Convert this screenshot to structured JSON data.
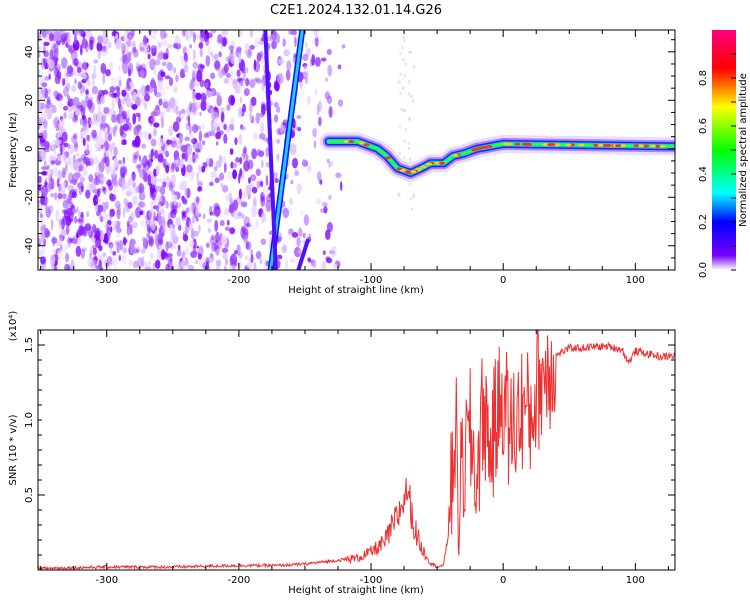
{
  "title": "C2E1.2024.132.01.14.G26",
  "chart_data": [
    {
      "type": "heatmap",
      "xlabel": "Height of straight line (km)",
      "ylabel": "Frequency (Hz)",
      "xlim": [
        -352,
        130
      ],
      "ylim": [
        -50,
        49
      ],
      "x_ticks": [
        -300,
        -200,
        -100,
        0,
        100
      ],
      "y_ticks": [
        -40,
        -20,
        0,
        20,
        40
      ],
      "colorbar": {
        "label": "Normalized spectral amplitude",
        "range": [
          0,
          1
        ],
        "ticks": [
          "0.0",
          "0.2",
          "0.4",
          "0.6",
          "0.8"
        ],
        "colormap": [
          "#ffffff",
          "#7a00ff",
          "#0000ff",
          "#00ffff",
          "#00ff00",
          "#ffff00",
          "#ff0000",
          "#ff00aa"
        ]
      },
      "features": [
        {
          "name": "noise",
          "x": [
            -352,
            -120
          ],
          "y": [
            -50,
            49
          ]
        },
        {
          "name": "steep streak",
          "points": [
            [
              -176,
              -50
            ],
            [
              -152,
              49
            ]
          ]
        },
        {
          "name": "streak",
          "points": [
            [
              -180,
              49
            ],
            [
              -172,
              -50
            ]
          ]
        },
        {
          "name": "streak",
          "points": [
            [
              -155,
              -50
            ],
            [
              -148,
              -38
            ]
          ]
        },
        {
          "name": "signal track",
          "points": [
            [
              -132,
              3
            ],
            [
              -110,
              3
            ],
            [
              -100,
              1
            ],
            [
              -95,
              0
            ],
            [
              -88,
              -3
            ],
            [
              -80,
              -8
            ],
            [
              -70,
              -10
            ],
            [
              -62,
              -8
            ],
            [
              -55,
              -6
            ],
            [
              -45,
              -6
            ],
            [
              -38,
              -3
            ],
            [
              -30,
              -2
            ],
            [
              -20,
              0
            ],
            [
              -10,
              1
            ],
            [
              0,
              2
            ],
            [
              130,
              1
            ]
          ]
        }
      ],
      "grid": false
    },
    {
      "type": "line",
      "xlabel": "Height of straight line (km)",
      "ylabel": "SNR (10 * v/v)",
      "y_scale_label": "(x10⁴)",
      "xlim": [
        -352,
        130
      ],
      "ylim": [
        0,
        1.6
      ],
      "x_ticks": [
        -300,
        -200,
        -100,
        0,
        100
      ],
      "y_ticks": [
        "0.5",
        "1.0",
        "1.5"
      ],
      "series": [
        {
          "color": "#f03030",
          "x": [
            -352,
            -300,
            -250,
            -200,
            -170,
            -150,
            -130,
            -110,
            -100,
            -90,
            -80,
            -72,
            -68,
            -62,
            -55,
            -50,
            -45,
            -40,
            -36,
            -34,
            -30,
            -25,
            -20,
            -15,
            -10,
            -5,
            0,
            5,
            10,
            15,
            20,
            25,
            30,
            40,
            50,
            60,
            70,
            80,
            90,
            95,
            100,
            110,
            120,
            130
          ],
          "y": [
            0.01,
            0.02,
            0.02,
            0.03,
            0.03,
            0.04,
            0.06,
            0.08,
            0.12,
            0.18,
            0.35,
            0.55,
            0.3,
            0.15,
            0.05,
            0.02,
            0.03,
            0.4,
            1.0,
            0.4,
            0.7,
            0.9,
            0.6,
            1.1,
            0.8,
            1.0,
            1.2,
            0.9,
            1.0,
            1.1,
            1.0,
            1.2,
            1.3,
            1.43,
            1.48,
            1.48,
            1.49,
            1.49,
            1.47,
            1.38,
            1.46,
            1.44,
            1.42,
            1.43
          ]
        }
      ],
      "grid": false
    }
  ]
}
